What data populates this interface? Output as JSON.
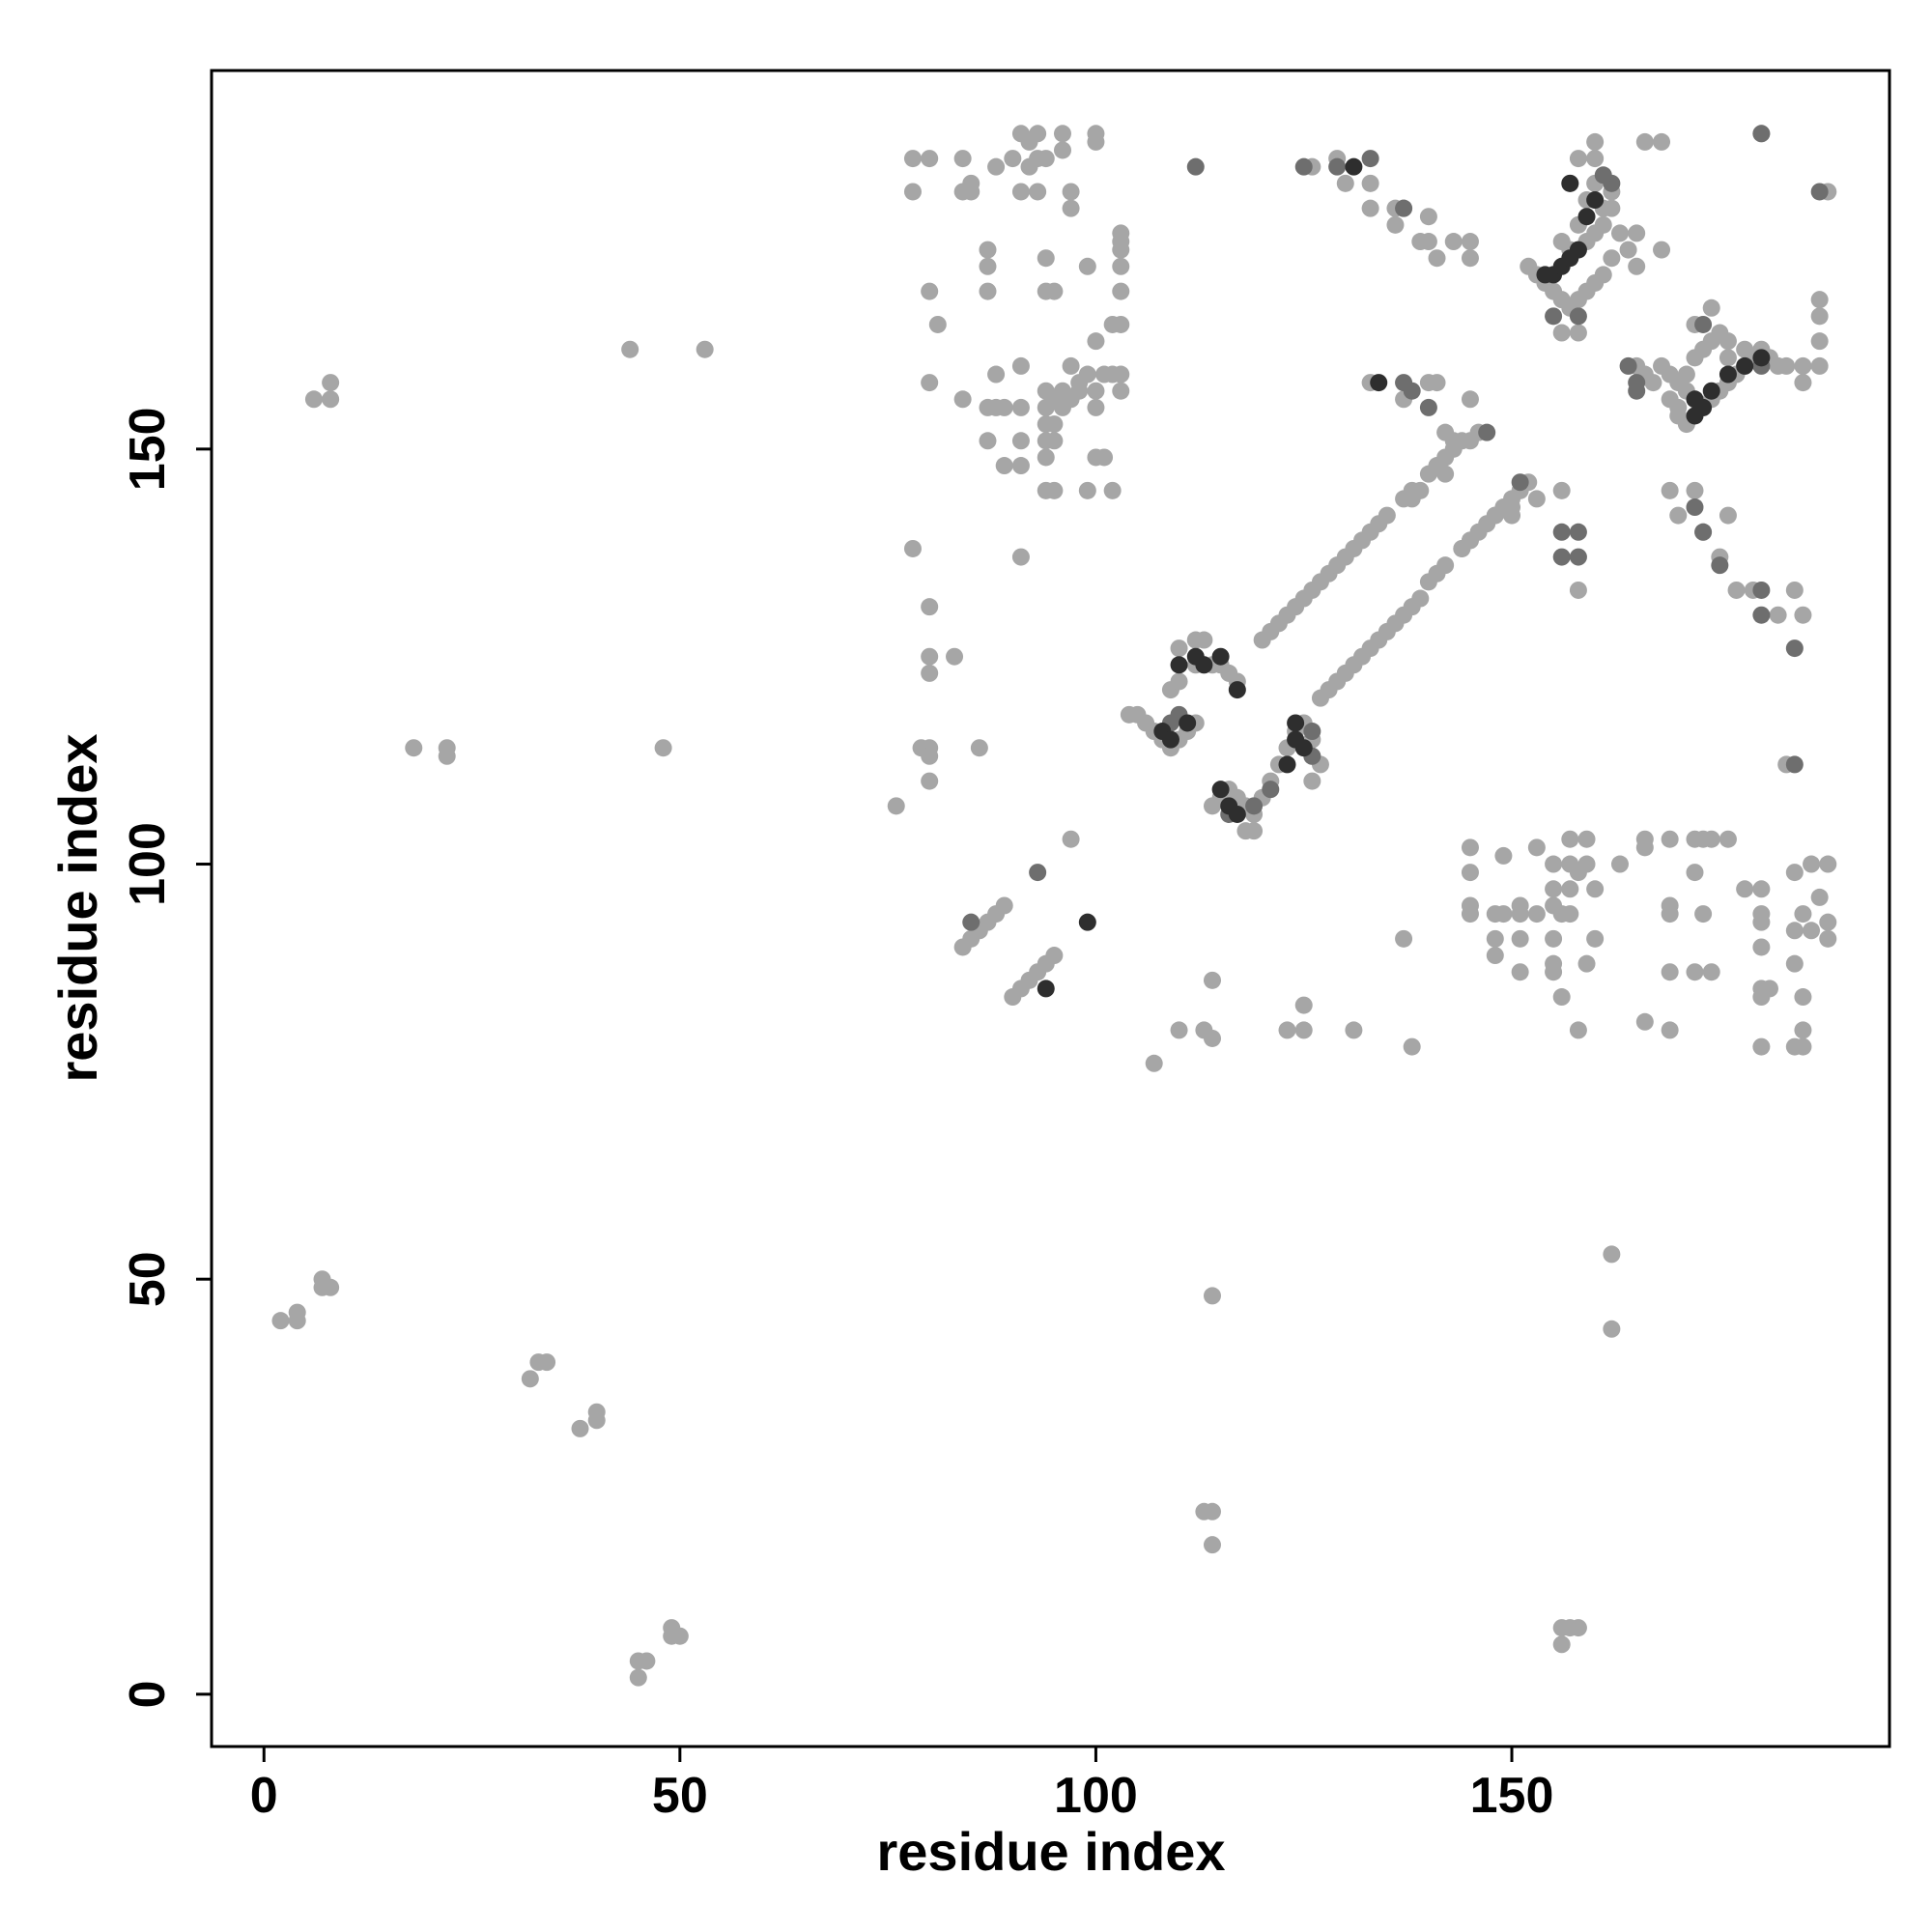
{
  "chart_data": {
    "type": "scatter",
    "xlabel": "residue index",
    "ylabel": "residue index",
    "xlim": [
      -6.3,
      195.4
    ],
    "ylim": [
      -6.3,
      195.6
    ],
    "xticks": [
      0,
      50,
      100,
      150
    ],
    "yticks": [
      0,
      50,
      100,
      150
    ],
    "series": [
      {
        "color": "#a6a6a6",
        "x": [
          2,
          4,
          4,
          7,
          8,
          7,
          6,
          8,
          8,
          18,
          22,
          22,
          44,
          53,
          48,
          33,
          34,
          32,
          38,
          40,
          40,
          45,
          45,
          46,
          49,
          50,
          49,
          113,
          114,
          114,
          114,
          156,
          157,
          158,
          156,
          162,
          162
        ],
        "values": [
          45,
          46,
          45,
          50,
          49,
          49,
          156,
          158,
          156,
          114,
          114,
          113,
          162,
          162,
          114,
          40,
          40,
          38,
          32,
          34,
          33,
          2,
          4,
          4,
          8,
          7,
          7,
          22,
          22,
          18,
          48,
          8,
          8,
          8,
          6,
          53,
          44
        ]
      },
      {
        "color": "#a6a6a6",
        "x": [
          76,
          78,
          80,
          80,
          80,
          83,
          79,
          80,
          80,
          80,
          86,
          91,
          97
        ],
        "values": [
          107,
          138,
          131,
          125,
          123,
          125,
          114,
          114,
          113,
          110,
          114,
          137,
          103
        ]
      },
      {
        "color": "#a6a6a6",
        "x": [
          78,
          78,
          80,
          84,
          84,
          85,
          85,
          88,
          90,
          91,
          92,
          93,
          92,
          93,
          91,
          93,
          97,
          97,
          96,
          96,
          100,
          100,
          94
        ],
        "values": [
          185,
          181,
          185,
          185,
          181,
          182,
          181,
          184,
          185,
          188,
          187,
          188,
          184,
          185,
          181,
          181,
          181,
          179,
          188,
          186,
          188,
          187,
          185
        ]
      },
      {
        "color": "#a6a6a6",
        "x": [
          80,
          81,
          80,
          84,
          87,
          87,
          87,
          88,
          87,
          88,
          89,
          87,
          89,
          91,
          91,
          91,
          91,
          94,
          94,
          95,
          94,
          94,
          95,
          94,
          94,
          95,
          94,
          94,
          95,
          96,
          97,
          98,
          99,
          100,
          100,
          99,
          100,
          100,
          101,
          99,
          102,
          103,
          103,
          103,
          103,
          103,
          102,
          103,
          102,
          103,
          103,
          101,
          98,
          96,
          95,
          97
        ],
        "values": [
          169,
          165,
          158,
          156,
          174,
          172,
          169,
          159,
          155,
          155,
          155,
          151,
          148,
          148,
          151,
          155,
          160,
          173,
          169,
          169,
          157,
          155,
          156,
          153,
          151,
          151,
          149,
          145,
          145,
          157,
          160,
          158,
          159,
          157,
          155,
          172,
          163,
          149,
          149,
          145,
          145,
          176,
          175,
          174,
          172,
          169,
          165,
          165,
          159,
          159,
          157,
          159,
          157,
          155,
          153,
          156
        ]
      },
      {
        "color": "#a6a6a6",
        "x": [
          145,
          145,
          145,
          145,
          148,
          148,
          148,
          149,
          149,
          151,
          151,
          151,
          151,
          153,
          153,
          155,
          155,
          155,
          155,
          155,
          155,
          156,
          156,
          157,
          157,
          157,
          157,
          158,
          158,
          159,
          159,
          159,
          160,
          160,
          163,
          166,
          166,
          166,
          169,
          169,
          169,
          169,
          169,
          172,
          173,
          174,
          176,
          172,
          173,
          172,
          174,
          178,
          180,
          180,
          180,
          180,
          180,
          180,
          181,
          180,
          184,
          184,
          184,
          185,
          185,
          185,
          185,
          184,
          186,
          188,
          187,
          186,
          188,
          188
        ],
        "values": [
          102,
          99,
          95,
          94,
          94,
          91,
          89,
          101,
          94,
          95,
          94,
          91,
          87,
          102,
          94,
          100,
          97,
          95,
          91,
          88,
          87,
          94,
          84,
          103,
          100,
          97,
          94,
          99,
          80,
          103,
          100,
          88,
          97,
          91,
          100,
          103,
          102,
          81,
          103,
          95,
          94,
          87,
          80,
          103,
          103,
          103,
          103,
          99,
          94,
          87,
          87,
          97,
          97,
          94,
          93,
          90,
          85,
          84,
          85,
          78,
          99,
          88,
          92,
          94,
          84,
          80,
          78,
          78,
          100,
          100,
          96,
          92,
          93,
          91
        ]
      },
      {
        "color": "#a6a6a6",
        "x": [
          107,
          110,
          113,
          114,
          114,
          123,
          125,
          125,
          131,
          137,
          138
        ],
        "values": [
          76,
          80,
          80,
          79,
          86,
          80,
          80,
          83,
          80,
          91,
          78
        ]
      },
      {
        "color": "#a6a6a6",
        "x": [
          180,
          166,
          168,
          160,
          158,
          160,
          157,
          162,
          161,
          163,
          164,
          165,
          168,
          165,
          188,
          187,
          187,
          187,
          187,
          185,
          185,
          183
        ],
        "values": [
          188,
          187,
          187,
          187,
          185,
          185,
          182,
          181,
          179,
          176,
          174,
          172,
          174,
          176,
          181,
          168,
          166,
          163,
          160,
          160,
          158,
          160
        ]
      },
      {
        "color": "#a6a6a6",
        "x": [
          126,
          129,
          130,
          133,
          133,
          136,
          136,
          137,
          140,
          140,
          141,
          143,
          145,
          145,
          139
        ],
        "values": [
          184,
          185,
          182,
          182,
          179,
          179,
          177,
          179,
          178,
          175,
          173,
          175,
          175,
          173,
          175
        ]
      },
      {
        "color": "#a6a6a6",
        "x": [
          133,
          140,
          141,
          137,
          145,
          142,
          143,
          146,
          145,
          138,
          139,
          142,
          144,
          145,
          148,
          150,
          150,
          152,
          153,
          156,
          158
        ],
        "values": [
          158,
          158,
          158,
          156,
          156,
          152,
          151,
          152,
          151,
          144,
          145,
          147,
          138,
          139,
          142,
          143,
          142,
          146,
          144,
          145,
          133
        ]
      },
      {
        "color": "#a6a6a6",
        "x": [
          169,
          170,
          171,
          172,
          174,
          175,
          176,
          169,
          170,
          172,
          173,
          176,
          175,
          177,
          179,
          182,
          184,
          185,
          183
        ],
        "values": [
          156,
          155,
          159,
          165,
          167,
          164,
          163,
          145,
          142,
          145,
          140,
          142,
          137,
          133,
          133,
          130,
          133,
          130,
          112
        ]
      },
      {
        "color": "#a6a6a6",
        "x": [
          120,
          121,
          122,
          123,
          124,
          125,
          126,
          127,
          128,
          129,
          130,
          131,
          132,
          133,
          134,
          135,
          137,
          138,
          140,
          141,
          142,
          143,
          144
        ],
        "values": [
          127,
          128,
          129,
          130,
          131,
          132,
          133,
          134,
          135,
          136,
          137,
          138,
          139,
          140,
          141,
          142,
          144,
          145,
          147,
          148,
          149,
          150,
          151
        ]
      },
      {
        "color": "#a6a6a6",
        "x": [
          127,
          128,
          129,
          130,
          131,
          132,
          133,
          134,
          135,
          136,
          137,
          138,
          139,
          140,
          141,
          142,
          144,
          145,
          146,
          147,
          148,
          149,
          150,
          151
        ],
        "values": [
          120,
          121,
          122,
          123,
          124,
          125,
          126,
          127,
          128,
          129,
          130,
          131,
          132,
          134,
          135,
          136,
          138,
          139,
          140,
          141,
          142,
          143,
          144,
          145
        ]
      },
      {
        "color": "#a6a6a6",
        "x": [
          84,
          85,
          86,
          87,
          88,
          89,
          90,
          91,
          92,
          93,
          94,
          95
        ],
        "values": [
          90,
          91,
          92,
          93,
          94,
          95,
          84,
          85,
          86,
          87,
          88,
          89
        ]
      },
      {
        "color": "#a6a6a6",
        "x": [
          104,
          105,
          106,
          107,
          108,
          109,
          110,
          111,
          112,
          109,
          110,
          112,
          113,
          114,
          115,
          116,
          117,
          112,
          113,
          110
        ],
        "values": [
          118,
          118,
          117,
          116,
          115,
          114,
          115,
          116,
          117,
          121,
          122,
          124,
          124,
          124,
          124,
          123,
          122,
          127,
          127,
          126
        ]
      },
      {
        "color": "#a6a6a6",
        "x": [
          114,
          115,
          116,
          117,
          118,
          119,
          120,
          121,
          122,
          123,
          124,
          125,
          126,
          127,
          118,
          119,
          126,
          126
        ],
        "values": [
          107,
          108,
          109,
          108,
          107,
          106,
          108,
          110,
          112,
          114,
          116,
          117,
          115,
          112,
          104,
          104,
          110,
          113
        ]
      },
      {
        "color": "#a6a6a6",
        "x": [
          152,
          153,
          154,
          155,
          156,
          157,
          158,
          159,
          160,
          161,
          162,
          159,
          160,
          157,
          156,
          158,
          159,
          160,
          158,
          156,
          162,
          161
        ],
        "values": [
          172,
          171,
          170,
          169,
          168,
          167,
          168,
          169,
          170,
          171,
          173,
          175,
          176,
          174,
          175,
          177,
          180,
          182,
          164,
          164,
          179,
          177
        ]
      },
      {
        "color": "#a6a6a6",
        "x": [
          168,
          169,
          170,
          171,
          172,
          173,
          174,
          175,
          176,
          177,
          178,
          179,
          180,
          172,
          173,
          174,
          176,
          178,
          181,
          182,
          165,
          166,
          167,
          170,
          171
        ],
        "values": [
          160,
          159,
          158,
          157,
          156,
          155,
          156,
          157,
          158,
          159,
          160,
          161,
          162,
          161,
          162,
          163,
          161,
          162,
          161,
          160,
          160,
          159,
          158,
          154,
          153
        ]
      },
      {
        "color": "#6e6e6e",
        "x": [
          93,
          112,
          125,
          129,
          133,
          137,
          138,
          140,
          137,
          147,
          151,
          156,
          158,
          156,
          158,
          164,
          165,
          162,
          161,
          173,
          175,
          180,
          180,
          184,
          184,
          180,
          187,
          173,
          172,
          85,
          126,
          109,
          110,
          116,
          119,
          121,
          126,
          155,
          158,
          165,
          180
        ],
        "values": [
          99,
          184,
          184,
          184,
          185,
          158,
          157,
          155,
          179,
          152,
          146,
          140,
          140,
          137,
          137,
          160,
          158,
          182,
          183,
          140,
          136,
          133,
          130,
          126,
          112,
          188,
          181,
          165,
          143,
          93,
          113,
          117,
          118,
          106,
          107,
          109,
          116,
          166,
          166,
          157,
          160
        ]
      },
      {
        "color": "#2e2e2e",
        "x": [
          99,
          94,
          111,
          108,
          109,
          110,
          112,
          113,
          115,
          117,
          116,
          117,
          115,
          124,
          124,
          125,
          123,
          154,
          155,
          156,
          157,
          158,
          159,
          160,
          172,
          173,
          172,
          174,
          176,
          178,
          180,
          131,
          134,
          157
        ],
        "values": [
          93,
          85,
          117,
          116,
          115,
          124,
          125,
          124,
          125,
          121,
          107,
          106,
          109,
          117,
          115,
          114,
          112,
          171,
          171,
          172,
          173,
          174,
          178,
          180,
          156,
          155,
          154,
          157,
          159,
          160,
          161,
          184,
          158,
          182
        ]
      }
    ]
  }
}
